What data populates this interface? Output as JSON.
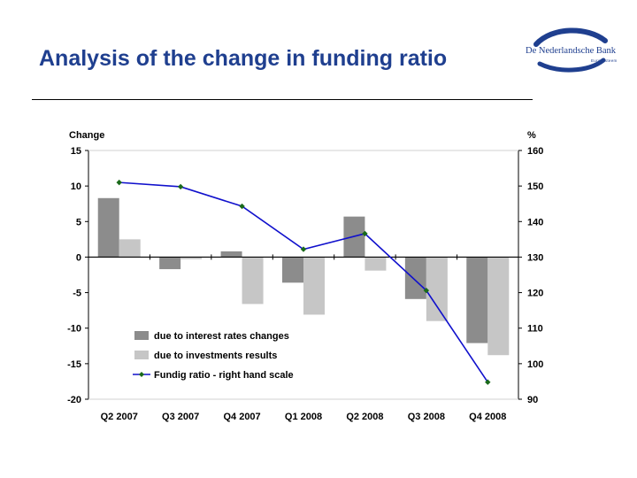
{
  "title": "Analysis of the change in funding ratio",
  "logo": {
    "name": "De Nederlandsche Bank",
    "sub": "Eurosysteem"
  },
  "chart_data": {
    "type": "bar",
    "categories": [
      "Q2 2007",
      "Q3 2007",
      "Q4 2007",
      "Q1 2008",
      "Q2 2008",
      "Q3 2008",
      "Q4 2008"
    ],
    "series": [
      {
        "name": "due to interest rates changes",
        "type": "bar",
        "axis": "left",
        "color": "#8c8c8c",
        "values": [
          8.3,
          -1.7,
          0.8,
          -3.6,
          5.7,
          -5.9,
          -12.1
        ]
      },
      {
        "name": "due to investments results",
        "type": "bar",
        "axis": "left",
        "color": "#c6c6c6",
        "values": [
          2.5,
          -0.3,
          -6.6,
          -8.1,
          -1.9,
          -9.0,
          -13.8
        ]
      },
      {
        "name": "Fundig ratio - right hand scale",
        "type": "line",
        "axis": "right",
        "color": "#1010cc",
        "marker_color": "#1a6a1a",
        "values": [
          151.0,
          149.8,
          144.3,
          132.2,
          136.6,
          120.6,
          94.8
        ]
      }
    ],
    "ylabel": "Change",
    "y2label": "%",
    "ylim": [
      -20,
      15
    ],
    "y2lim": [
      90,
      160
    ],
    "yticks": [
      "15",
      "10",
      "5",
      "0",
      "-5",
      "-10",
      "-15",
      "-20"
    ],
    "y2ticks": [
      "160",
      "150",
      "140",
      "130",
      "120",
      "110",
      "100",
      "90"
    ],
    "legend_position": "bottom-left inside"
  }
}
